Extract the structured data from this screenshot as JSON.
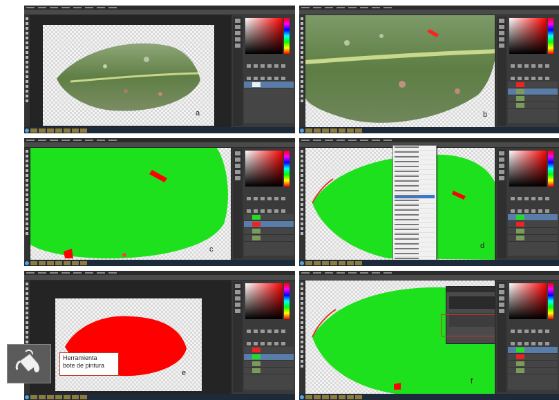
{
  "panels": [
    {
      "id": "a",
      "label": "a"
    },
    {
      "id": "b",
      "label": "b"
    },
    {
      "id": "c",
      "label": "c"
    },
    {
      "id": "d",
      "label": "d"
    },
    {
      "id": "e",
      "label": "e"
    },
    {
      "id": "f",
      "label": "f"
    }
  ],
  "callout": {
    "line1": "Herramienta",
    "line2": "bote de pintura"
  },
  "icons": {
    "paint_bucket": "paint-bucket-icon"
  },
  "colors": {
    "leaf_green_mask": "#1ee11e",
    "lesion_red": "#ff0000",
    "callout_border": "#c0392b",
    "photoshop_ui": "#3a3a3a",
    "selected_layer": "#5a7ca8"
  }
}
